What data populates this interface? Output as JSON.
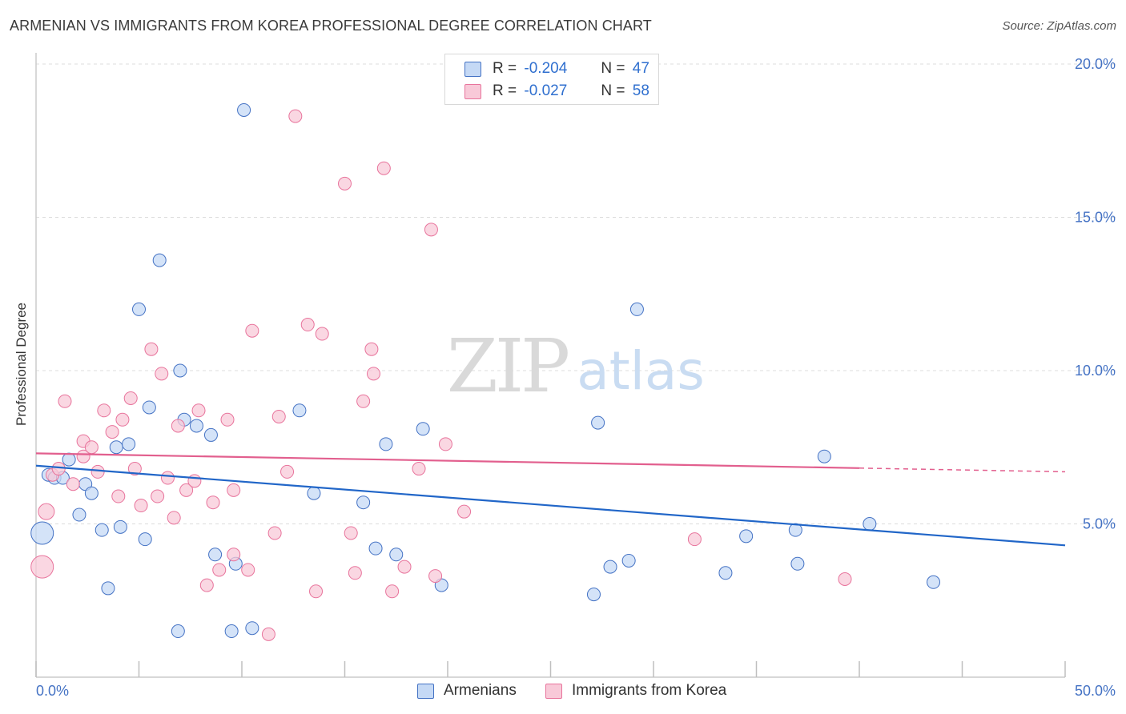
{
  "title": "ARMENIAN VS IMMIGRANTS FROM KOREA PROFESSIONAL DEGREE CORRELATION CHART",
  "source": "Source: ZipAtlas.com",
  "watermark": {
    "zip": "ZIP",
    "atlas": "atlas"
  },
  "legend": {
    "armenians": {
      "r_label": "R =",
      "r_value": "-0.204",
      "n_label": "N =",
      "n_value": "47"
    },
    "korea": {
      "r_label": "R =",
      "r_value": "-0.027",
      "n_label": "N =",
      "n_value": "58"
    }
  },
  "bottom_legend": {
    "armenians": "Armenians",
    "korea": "Immigrants from Korea"
  },
  "colors": {
    "blue": "#4472c4",
    "blue_fill": "#c5d9f5",
    "blue_line": "#2166c8",
    "pink": "#e8749c",
    "pink_fill": "#f8c9d8",
    "pink_line": "#e25f8e"
  },
  "chart_data": {
    "type": "scatter",
    "title": "ARMENIAN VS IMMIGRANTS FROM KOREA PROFESSIONAL DEGREE CORRELATION CHART",
    "xlabel": "",
    "ylabel": "Professional Degree",
    "xlim": [
      0,
      50
    ],
    "ylim": [
      0,
      20
    ],
    "x_tick_labels": [
      "0.0%",
      "50.0%"
    ],
    "y_ticks": [
      5,
      10,
      15,
      20
    ],
    "y_tick_labels": [
      "5.0%",
      "10.0%",
      "15.0%",
      "20.0%"
    ],
    "grid": "horizontal dashed",
    "legend_position": "top-center",
    "series": [
      {
        "name": "Armenians",
        "r": -0.204,
        "n": 47,
        "trend": {
          "x": [
            0,
            50
          ],
          "y": [
            6.9,
            4.3
          ],
          "dashed_after": null
        },
        "points": [
          [
            0.3,
            4.7,
            14
          ],
          [
            0.6,
            6.6,
            8
          ],
          [
            0.9,
            6.5,
            8
          ],
          [
            1.3,
            6.5,
            8
          ],
          [
            1.6,
            7.1,
            8
          ],
          [
            2.1,
            5.3,
            8
          ],
          [
            2.4,
            6.3,
            8
          ],
          [
            2.7,
            6.0,
            8
          ],
          [
            3.2,
            4.8,
            8
          ],
          [
            3.5,
            2.9,
            8
          ],
          [
            3.9,
            7.5,
            8
          ],
          [
            4.1,
            4.9,
            8
          ],
          [
            4.5,
            7.6,
            8
          ],
          [
            5.0,
            12.0,
            8
          ],
          [
            5.3,
            4.5,
            8
          ],
          [
            5.5,
            8.8,
            8
          ],
          [
            6.0,
            13.6,
            8
          ],
          [
            6.9,
            1.5,
            8
          ],
          [
            7.0,
            10.0,
            8
          ],
          [
            7.2,
            8.4,
            8
          ],
          [
            7.8,
            8.2,
            8
          ],
          [
            8.5,
            7.9,
            8
          ],
          [
            8.7,
            4.0,
            8
          ],
          [
            9.5,
            1.5,
            8
          ],
          [
            9.7,
            3.7,
            8
          ],
          [
            10.1,
            18.5,
            8
          ],
          [
            10.5,
            1.6,
            8
          ],
          [
            12.8,
            8.7,
            8
          ],
          [
            13.5,
            6.0,
            8
          ],
          [
            15.9,
            5.7,
            8
          ],
          [
            16.5,
            4.2,
            8
          ],
          [
            17.0,
            7.6,
            8
          ],
          [
            17.5,
            4.0,
            8
          ],
          [
            18.8,
            8.1,
            8
          ],
          [
            19.7,
            3.0,
            8
          ],
          [
            27.1,
            2.7,
            8
          ],
          [
            27.3,
            8.3,
            8
          ],
          [
            27.9,
            3.6,
            8
          ],
          [
            28.8,
            3.8,
            8
          ],
          [
            29.2,
            12.0,
            8
          ],
          [
            33.5,
            3.4,
            8
          ],
          [
            34.5,
            4.6,
            8
          ],
          [
            36.9,
            4.8,
            8
          ],
          [
            37.0,
            3.7,
            8
          ],
          [
            38.3,
            7.2,
            8
          ],
          [
            40.5,
            5.0,
            8
          ],
          [
            43.6,
            3.1,
            8
          ]
        ]
      },
      {
        "name": "Immigrants from Korea",
        "r": -0.027,
        "n": 58,
        "trend": {
          "x": [
            0,
            50
          ],
          "y": [
            7.3,
            6.7
          ],
          "dashed_after": 40
        },
        "points": [
          [
            0.3,
            3.6,
            14
          ],
          [
            0.5,
            5.4,
            10
          ],
          [
            0.8,
            6.6,
            8
          ],
          [
            1.1,
            6.8,
            8
          ],
          [
            1.4,
            9.0,
            8
          ],
          [
            1.8,
            6.3,
            8
          ],
          [
            2.3,
            7.2,
            8
          ],
          [
            2.3,
            7.7,
            8
          ],
          [
            2.7,
            7.5,
            8
          ],
          [
            3.0,
            6.7,
            8
          ],
          [
            3.3,
            8.7,
            8
          ],
          [
            3.7,
            8.0,
            8
          ],
          [
            4.0,
            5.9,
            8
          ],
          [
            4.2,
            8.4,
            8
          ],
          [
            4.6,
            9.1,
            8
          ],
          [
            4.8,
            6.8,
            8
          ],
          [
            5.1,
            5.6,
            8
          ],
          [
            5.6,
            10.7,
            8
          ],
          [
            5.9,
            5.9,
            8
          ],
          [
            6.1,
            9.9,
            8
          ],
          [
            6.4,
            6.5,
            8
          ],
          [
            6.7,
            5.2,
            8
          ],
          [
            6.9,
            8.2,
            8
          ],
          [
            7.3,
            6.1,
            8
          ],
          [
            7.7,
            6.4,
            8
          ],
          [
            7.9,
            8.7,
            8
          ],
          [
            8.3,
            3.0,
            8
          ],
          [
            8.6,
            5.7,
            8
          ],
          [
            8.9,
            3.5,
            8
          ],
          [
            9.3,
            8.4,
            8
          ],
          [
            9.6,
            4.0,
            8
          ],
          [
            9.6,
            6.1,
            8
          ],
          [
            10.3,
            3.5,
            8
          ],
          [
            10.5,
            11.3,
            8
          ],
          [
            11.3,
            1.4,
            8
          ],
          [
            11.6,
            4.7,
            8
          ],
          [
            11.8,
            8.5,
            8
          ],
          [
            12.2,
            6.7,
            8
          ],
          [
            12.6,
            18.3,
            8
          ],
          [
            13.2,
            11.5,
            8
          ],
          [
            13.6,
            2.8,
            8
          ],
          [
            13.9,
            11.2,
            8
          ],
          [
            15.0,
            16.1,
            8
          ],
          [
            15.3,
            4.7,
            8
          ],
          [
            15.5,
            3.4,
            8
          ],
          [
            15.9,
            9.0,
            8
          ],
          [
            16.3,
            10.7,
            8
          ],
          [
            16.4,
            9.9,
            8
          ],
          [
            16.9,
            16.6,
            8
          ],
          [
            17.3,
            2.8,
            8
          ],
          [
            17.9,
            3.6,
            8
          ],
          [
            18.6,
            6.8,
            8
          ],
          [
            19.2,
            14.6,
            8
          ],
          [
            19.4,
            3.3,
            8
          ],
          [
            19.9,
            7.6,
            8
          ],
          [
            20.8,
            5.4,
            8
          ],
          [
            32.0,
            4.5,
            8
          ],
          [
            39.3,
            3.2,
            8
          ]
        ]
      }
    ]
  }
}
